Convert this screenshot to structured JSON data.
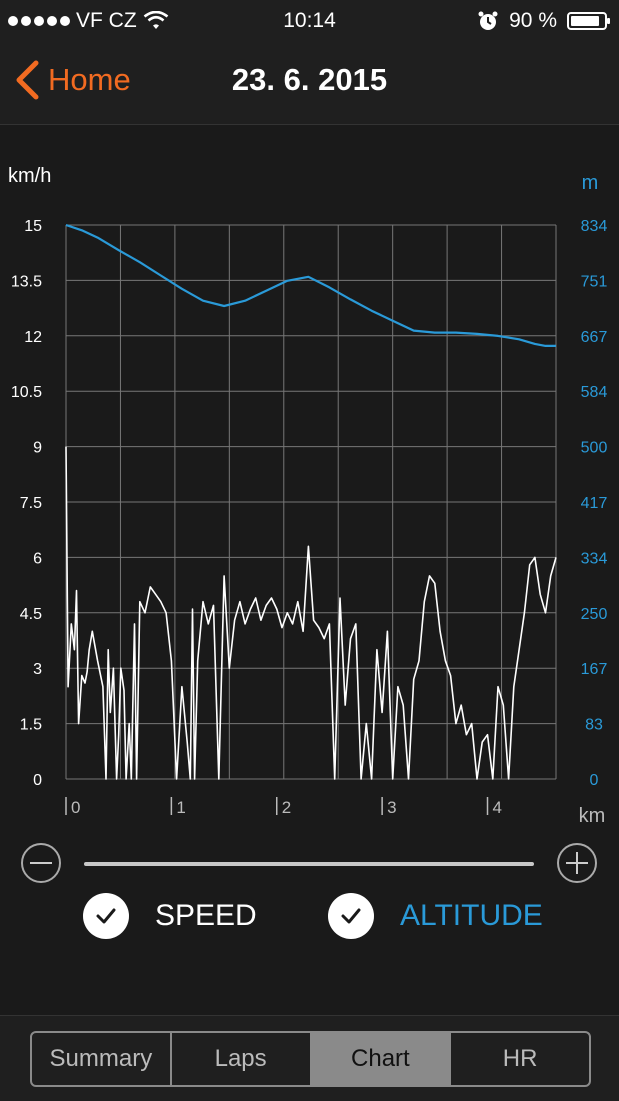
{
  "status": {
    "carrier": "VF CZ",
    "time": "10:14",
    "battery_text": "90 %",
    "battery_level": 0.9
  },
  "nav": {
    "back_label": "Home",
    "title": "23. 6. 2015"
  },
  "colors": {
    "accent": "#f26b21",
    "altitude": "#2a9ad8",
    "speed": "#ffffff",
    "grid": "#777777"
  },
  "chart_data": {
    "type": "line",
    "ylabel_left": "km/h",
    "ylabel_right": "m",
    "xlabel": "km",
    "x_range": [
      0,
      4.65
    ],
    "x_ticks": [
      "0",
      "1",
      "2",
      "3",
      "4"
    ],
    "left_ticks": [
      "0",
      "1.5",
      "3",
      "4.5",
      "6",
      "7.5",
      "9",
      "10.5",
      "12",
      "13.5",
      "15"
    ],
    "right_ticks": [
      "0",
      "83",
      "167",
      "250",
      "334",
      "417",
      "500",
      "584",
      "667",
      "751",
      "834"
    ],
    "left_range": [
      0,
      15
    ],
    "right_range": [
      0,
      834
    ],
    "grid": true,
    "series": [
      {
        "name": "ALTITUDE",
        "axis": "right",
        "x": [
          0,
          0.15,
          0.3,
          0.5,
          0.7,
          0.9,
          1.1,
          1.3,
          1.5,
          1.7,
          1.9,
          2.1,
          2.3,
          2.5,
          2.7,
          2.9,
          3.1,
          3.3,
          3.5,
          3.7,
          3.9,
          4.1,
          4.3,
          4.45,
          4.55,
          4.65
        ],
        "values": [
          834,
          826,
          815,
          796,
          778,
          758,
          738,
          720,
          712,
          720,
          735,
          750,
          756,
          740,
          722,
          705,
          690,
          675,
          672,
          672,
          670,
          667,
          662,
          655,
          652,
          652
        ]
      },
      {
        "name": "SPEED",
        "axis": "left",
        "x": [
          0,
          0.02,
          0.05,
          0.08,
          0.1,
          0.12,
          0.15,
          0.18,
          0.2,
          0.22,
          0.25,
          0.3,
          0.35,
          0.38,
          0.4,
          0.42,
          0.45,
          0.48,
          0.5,
          0.52,
          0.55,
          0.57,
          0.6,
          0.62,
          0.65,
          0.67,
          0.7,
          0.75,
          0.8,
          0.85,
          0.9,
          0.95,
          1.0,
          1.05,
          1.1,
          1.15,
          1.18,
          1.2,
          1.22,
          1.25,
          1.3,
          1.35,
          1.4,
          1.45,
          1.5,
          1.55,
          1.6,
          1.65,
          1.7,
          1.75,
          1.8,
          1.85,
          1.9,
          1.95,
          2.0,
          2.05,
          2.1,
          2.15,
          2.2,
          2.25,
          2.3,
          2.35,
          2.4,
          2.45,
          2.5,
          2.55,
          2.6,
          2.65,
          2.7,
          2.75,
          2.8,
          2.85,
          2.9,
          2.95,
          3.0,
          3.05,
          3.1,
          3.15,
          3.2,
          3.25,
          3.3,
          3.35,
          3.4,
          3.45,
          3.5,
          3.55,
          3.6,
          3.65,
          3.7,
          3.75,
          3.8,
          3.85,
          3.9,
          3.95,
          4.0,
          4.05,
          4.1,
          4.15,
          4.2,
          4.25,
          4.3,
          4.35,
          4.4,
          4.45,
          4.5,
          4.55,
          4.6,
          4.65
        ],
        "values": [
          9,
          2.5,
          4.2,
          3.5,
          5.1,
          1.5,
          2.8,
          2.6,
          2.9,
          3.5,
          4.0,
          3.2,
          2.5,
          0,
          3.5,
          1.8,
          3.0,
          0,
          1.2,
          3.0,
          2.4,
          0,
          1.5,
          0,
          4.2,
          0,
          4.8,
          4.5,
          5.2,
          5.0,
          4.8,
          4.5,
          3.2,
          0,
          2.5,
          1.0,
          0,
          4.6,
          0,
          3.2,
          4.8,
          4.2,
          4.7,
          0,
          5.5,
          3.0,
          4.3,
          4.8,
          4.2,
          4.6,
          4.9,
          4.3,
          4.7,
          4.9,
          4.6,
          4.1,
          4.5,
          4.2,
          4.8,
          4.0,
          6.3,
          4.3,
          4.1,
          3.8,
          4.2,
          0,
          4.9,
          2.0,
          3.8,
          4.2,
          0,
          1.5,
          0,
          3.5,
          1.8,
          4.0,
          0,
          2.5,
          2.0,
          0,
          2.7,
          3.2,
          4.8,
          5.5,
          5.3,
          4.0,
          3.2,
          2.8,
          1.5,
          2.0,
          1.2,
          1.5,
          0,
          1.0,
          1.2,
          0,
          2.5,
          2.0,
          0,
          2.5,
          3.5,
          4.5,
          5.8,
          6.0,
          5.0,
          4.5,
          5.5,
          6.0
        ]
      }
    ]
  },
  "controls": {
    "speed_label": "SPEED",
    "altitude_label": "ALTITUDE",
    "speed_checked": true,
    "altitude_checked": true
  },
  "tabs": [
    "Summary",
    "Laps",
    "Chart",
    "HR"
  ],
  "active_tab": "Chart"
}
